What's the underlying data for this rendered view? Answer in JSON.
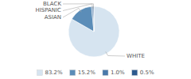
{
  "chart_data": {
    "type": "pie",
    "categories": [
      "WHITE",
      "ASIAN",
      "HISPANIC",
      "BLACK"
    ],
    "values": [
      83.2,
      15.2,
      1.0,
      0.5
    ],
    "value_labels": [
      "83.2%",
      "15.2%",
      "1.0%",
      "0.5%"
    ],
    "colors": [
      "#d6e4f0",
      "#5b8db8",
      "#4a7aab",
      "#2d5a8e"
    ],
    "legend": "bottom"
  }
}
